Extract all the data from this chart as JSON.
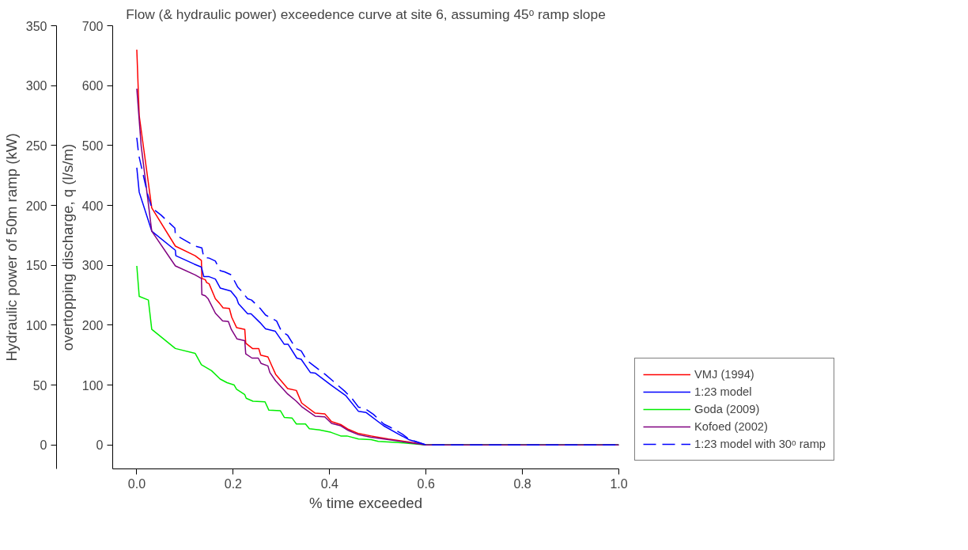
{
  "chart_data": {
    "type": "line",
    "title": "Flow (& hydraulic power) exceedence curve at site 6, assuming 45ᵒ ramp slope",
    "xlabel": "% time exceeded",
    "ylabel": "overtopping discharge, q (l/s/m)",
    "y2label": "Hydraulic power of 50m ramp (kW)",
    "xlim": [
      -0.05,
      1.0
    ],
    "xticks": [
      {
        "value": 0,
        "label": "0.0"
      },
      {
        "value": 0.2,
        "label": "0.2"
      },
      {
        "value": 0.4,
        "label": "0.4"
      },
      {
        "value": 0.6,
        "label": "0.6"
      },
      {
        "value": 0.8,
        "label": "0.8"
      },
      {
        "value": 1.0,
        "label": "1.0"
      }
    ],
    "ylim": [
      -40,
      700
    ],
    "yticks": [
      0,
      100,
      200,
      300,
      400,
      500,
      600,
      700
    ],
    "y2lim": [
      -20,
      350
    ],
    "y2ticks": [
      0,
      50,
      100,
      150,
      200,
      250,
      300,
      350
    ],
    "grid": false,
    "legend": "right",
    "line_style": "solid",
    "series": [
      {
        "name": "VMJ (1994)",
        "color": "#ff0000",
        "x": [
          0,
          0.005,
          0.031,
          0.08,
          0.121,
          0.134,
          0.135,
          0.142,
          0.145,
          0.15,
          0.163,
          0.171,
          0.179,
          0.192,
          0.197,
          0.207,
          0.224,
          0.226,
          0.24,
          0.253,
          0.257,
          0.272,
          0.279,
          0.288,
          0.313,
          0.331,
          0.342,
          0.37,
          0.39,
          0.404,
          0.423,
          0.439,
          0.46,
          0.486,
          0.522,
          0.564,
          0.6,
          1.0
        ],
        "values": [
          660,
          550,
          396,
          332,
          316,
          308,
          278,
          276,
          271,
          269,
          244,
          237,
          229,
          228,
          213,
          196,
          193,
          170,
          161,
          161,
          150,
          147,
          134,
          118,
          94,
          91,
          70,
          53,
          52,
          39,
          34,
          26,
          19,
          15,
          10,
          5,
          0,
          0
        ]
      },
      {
        "name": "1:23 model",
        "color": "#0000ff",
        "x": [
          0,
          0.005,
          0.031,
          0.08,
          0.081,
          0.119,
          0.134,
          0.139,
          0.15,
          0.163,
          0.173,
          0.195,
          0.207,
          0.211,
          0.23,
          0.237,
          0.256,
          0.267,
          0.287,
          0.306,
          0.314,
          0.332,
          0.341,
          0.36,
          0.37,
          0.403,
          0.434,
          0.46,
          0.476,
          0.512,
          0.543,
          0.564,
          0.6,
          1.0
        ],
        "values": [
          463,
          422,
          357,
          325,
          316,
          302,
          297,
          281,
          281,
          277,
          262,
          257,
          245,
          236,
          219,
          219,
          204,
          194,
          190,
          168,
          168,
          145,
          143,
          121,
          120,
          100,
          82,
          56,
          54,
          32,
          18,
          9,
          0,
          0
        ]
      },
      {
        "name": "Goda (2009)",
        "color": "#00ee00",
        "x": [
          0,
          0.005,
          0.024,
          0.031,
          0.08,
          0.121,
          0.134,
          0.155,
          0.173,
          0.187,
          0.202,
          0.207,
          0.224,
          0.227,
          0.241,
          0.266,
          0.274,
          0.298,
          0.306,
          0.322,
          0.331,
          0.35,
          0.358,
          0.379,
          0.403,
          0.423,
          0.436,
          0.46,
          0.486,
          0.501,
          0.543,
          0.6,
          1.0
        ],
        "values": [
          299,
          248,
          242,
          193,
          161,
          153,
          134,
          124,
          110,
          104,
          100,
          93,
          84,
          78,
          73,
          72,
          58,
          57,
          46,
          45,
          35,
          35,
          27,
          25,
          21,
          15,
          15,
          10,
          9,
          6,
          4,
          0,
          0
        ]
      },
      {
        "name": "Kofoed (2002)",
        "color": "#800080",
        "x": [
          0,
          0.009,
          0.031,
          0.08,
          0.121,
          0.134,
          0.135,
          0.142,
          0.148,
          0.163,
          0.178,
          0.19,
          0.196,
          0.208,
          0.224,
          0.226,
          0.239,
          0.252,
          0.258,
          0.272,
          0.276,
          0.288,
          0.313,
          0.331,
          0.342,
          0.37,
          0.39,
          0.404,
          0.423,
          0.439,
          0.46,
          0.486,
          0.522,
          0.564,
          0.6,
          1.0
        ],
        "values": [
          595,
          500,
          357,
          299,
          284,
          278,
          251,
          249,
          244,
          220,
          207,
          206,
          193,
          177,
          174,
          152,
          145,
          145,
          136,
          132,
          121,
          107,
          85,
          73,
          64,
          48,
          47,
          36,
          32,
          24,
          17,
          13,
          9,
          4,
          0,
          0
        ]
      },
      {
        "name": "1:23 model with 30ᵒ ramp",
        "color": "#0000ff",
        "line_style": "dashed",
        "x": [
          0,
          0.004,
          0.022,
          0.031,
          0.05,
          0.079,
          0.08,
          0.121,
          0.135,
          0.139,
          0.15,
          0.163,
          0.173,
          0.182,
          0.196,
          0.209,
          0.216,
          0.23,
          0.238,
          0.256,
          0.267,
          0.29,
          0.3,
          0.313,
          0.33,
          0.341,
          0.353,
          0.366,
          0.392,
          0.408,
          0.431,
          0.447,
          0.46,
          0.473,
          0.491,
          0.512,
          0.527,
          0.551,
          0.564,
          0.6,
          1.0
        ],
        "values": [
          513,
          484,
          420,
          396,
          384,
          362,
          351,
          332,
          329,
          313,
          312,
          307,
          291,
          289,
          284,
          264,
          258,
          244,
          242,
          228,
          217,
          207,
          190,
          183,
          161,
          157,
          141,
          133,
          117,
          106,
          90,
          77,
          63,
          61,
          51,
          35,
          29,
          18,
          10,
          0,
          0
        ]
      }
    ]
  }
}
